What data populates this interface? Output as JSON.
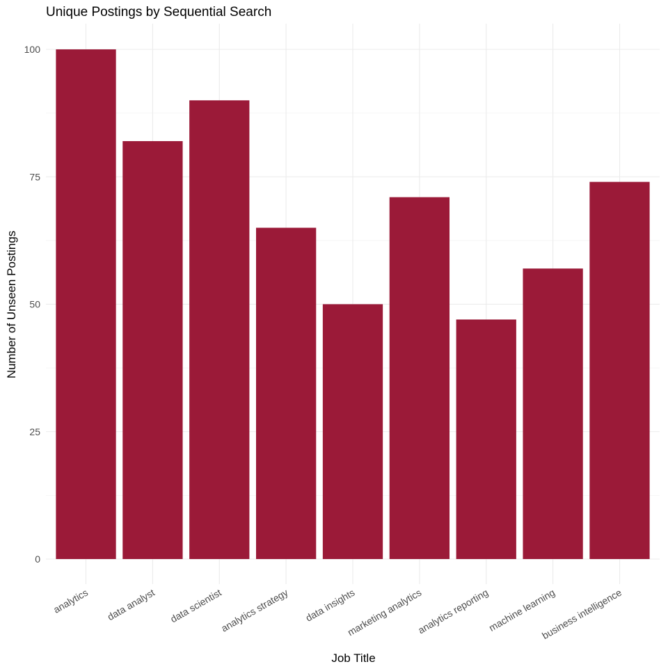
{
  "chart_data": {
    "type": "bar",
    "title": "Unique Postings by Sequential Search",
    "xlabel": "Job Title",
    "ylabel": "Number of Unseen Postings",
    "categories": [
      "analytics",
      "data analyst",
      "data scientist",
      "analytics strategy",
      "data insights",
      "marketing analytics",
      "analytics reporting",
      "machine learning",
      "business intelligence"
    ],
    "values": [
      100,
      82,
      90,
      65,
      50,
      71,
      47,
      57,
      74
    ],
    "ylim": [
      0,
      105
    ],
    "yticks": [
      0,
      25,
      50,
      75,
      100
    ],
    "grid": true,
    "legend": "none",
    "bar_color": "#9b1a38"
  }
}
